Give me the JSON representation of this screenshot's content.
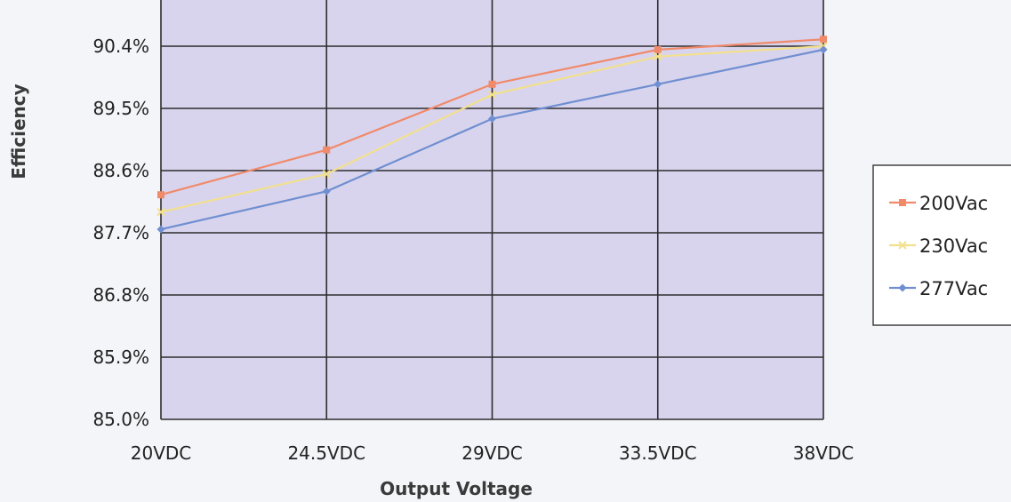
{
  "chart_data": {
    "type": "line",
    "xlabel": "Output Voltage",
    "ylabel": "Efficiency",
    "categories": [
      "20VDC",
      "24.5VDC",
      "29VDC",
      "33.5VDC",
      "38VDC"
    ],
    "y_ticks": [
      "85.0%",
      "85.9%",
      "86.8%",
      "87.7%",
      "88.6%",
      "89.5%",
      "90.4%"
    ],
    "ylim": [
      85.0,
      90.4
    ],
    "grid": true,
    "legend_position": "right",
    "plot_background": "#d9d4ee",
    "series": [
      {
        "name": "200Vac",
        "color": "#f08a6a",
        "marker": "square",
        "values": [
          88.25,
          88.9,
          89.85,
          90.35,
          90.5
        ]
      },
      {
        "name": "230Vac",
        "color": "#f2e08c",
        "marker": "x",
        "values": [
          88.0,
          88.55,
          89.7,
          90.25,
          90.4
        ]
      },
      {
        "name": "277Vac",
        "color": "#6f8fd0",
        "marker": "diamond",
        "values": [
          87.75,
          88.3,
          89.35,
          89.85,
          90.35
        ]
      }
    ]
  }
}
